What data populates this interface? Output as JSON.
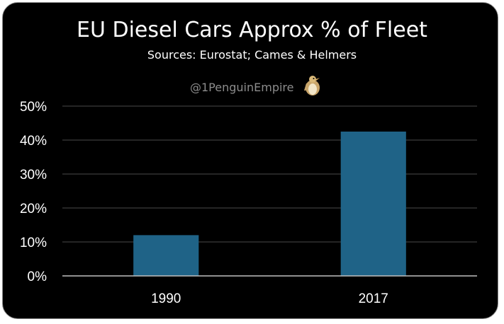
{
  "chart_data": {
    "type": "bar",
    "title": "EU Diesel Cars Approx % of Fleet",
    "subtitle": "Sources: Eurostat; Cames & Helmers",
    "credit": "@1PenguinEmpire",
    "categories": [
      "1990",
      "2017"
    ],
    "values": [
      12,
      42.5
    ],
    "yticks": [
      "0%",
      "10%",
      "20%",
      "30%",
      "40%",
      "50%"
    ],
    "ylim": [
      0,
      50
    ],
    "grid": true,
    "bar_color": "#1f6387",
    "background": "#000000"
  }
}
